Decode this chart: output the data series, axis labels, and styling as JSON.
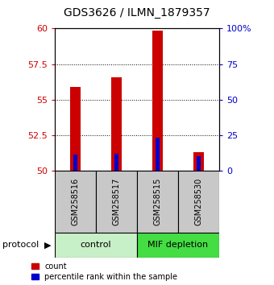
{
  "title": "GDS3626 / ILMN_1879357",
  "samples": [
    "GSM258516",
    "GSM258517",
    "GSM258515",
    "GSM258530"
  ],
  "red_values": [
    55.9,
    56.6,
    59.85,
    51.3
  ],
  "blue_values": [
    51.15,
    51.2,
    52.35,
    51.05
  ],
  "y_min": 50,
  "y_max": 60,
  "y_ticks": [
    50,
    52.5,
    55,
    57.5,
    60
  ],
  "y2_ticks": [
    0,
    25,
    50,
    75,
    100
  ],
  "red_bar_width": 0.25,
  "blue_bar_width": 0.1,
  "red_color": "#CC0000",
  "blue_color": "#0000CC",
  "left_tick_color": "#CC0000",
  "right_tick_color": "#0000CC",
  "protocol_label": "protocol",
  "legend_red": "count",
  "legend_blue": "percentile rank within the sample",
  "group_box_color_control": "#C8F0C8",
  "group_box_color_mif": "#44DD44",
  "sample_box_color": "#C8C8C8",
  "title_fontsize": 10,
  "tick_fontsize": 8,
  "sample_fontsize": 7,
  "protocol_fontsize": 8,
  "legend_fontsize": 7
}
